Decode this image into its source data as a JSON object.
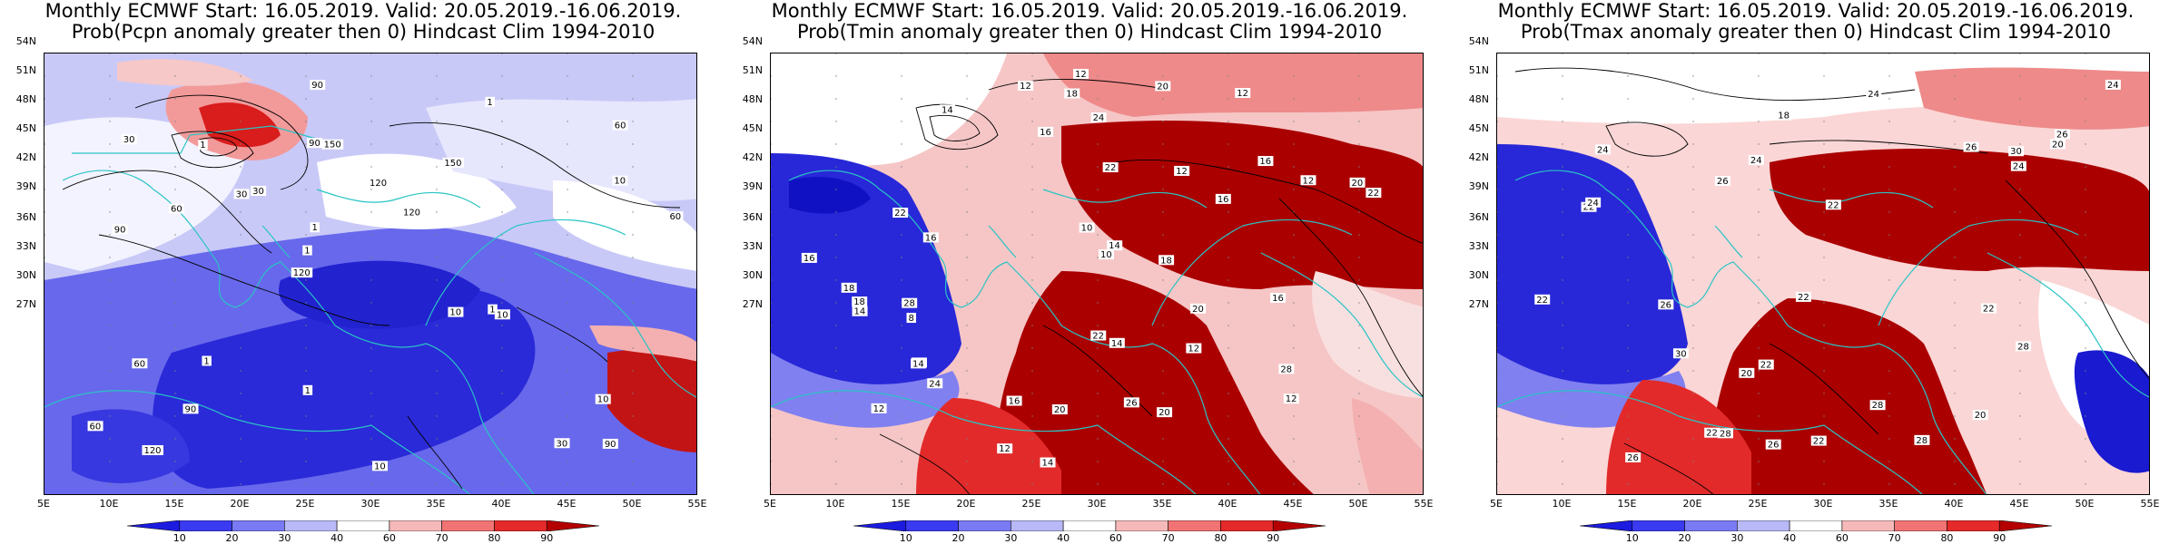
{
  "panels": [
    {
      "id": "pcpn",
      "title_line1": "Monthly ECMWF Start: 16.05.2019. Valid: 20.05.2019.-16.06.2019.",
      "title_line2": "Prob(Pcpn anomaly greater then 0) Hindcast Clim 1994-2010",
      "contour_labels": [
        "90",
        "90",
        "60",
        "120",
        "150",
        "120",
        "90",
        "120",
        "60",
        "30",
        "60",
        "90",
        "150",
        "120",
        "10",
        "30",
        "90",
        "60",
        "10",
        "10",
        "1",
        "1",
        "1",
        "1",
        "1",
        "1",
        "30",
        "10",
        "1",
        "10",
        "30",
        "60"
      ]
    },
    {
      "id": "tmin",
      "title_line1": "Monthly ECMWF Start: 16.05.2019. Valid: 20.05.2019.-16.06.2019.",
      "title_line2": "Prob(Tmin anomaly greater then 0) Hindcast Clim 1994-2010",
      "contour_labels": [
        "12",
        "12",
        "14",
        "16",
        "14",
        "16",
        "8",
        "10",
        "12",
        "16",
        "18",
        "12",
        "12",
        "10",
        "14",
        "12",
        "12",
        "16",
        "14",
        "12",
        "20",
        "18",
        "16",
        "14",
        "10",
        "16",
        "18",
        "20",
        "22",
        "20",
        "22",
        "24",
        "26",
        "22",
        "28",
        "14",
        "20",
        "18",
        "12",
        "16",
        "22",
        "24",
        "20",
        "28"
      ]
    },
    {
      "id": "tmax",
      "title_line1": "Monthly ECMWF Start: 16.05.2019. Valid: 20.05.2019.-16.06.2019.",
      "title_line2": "Prob(Tmax anomaly greater then 0) Hindcast Clim 1994-2010",
      "contour_labels": [
        "20",
        "22",
        "24",
        "26",
        "18",
        "22",
        "24",
        "26",
        "28",
        "22",
        "24",
        "26",
        "20",
        "22",
        "24",
        "28",
        "26",
        "22",
        "20",
        "22",
        "24",
        "22",
        "26",
        "28",
        "30",
        "22",
        "24",
        "26",
        "28",
        "30"
      ]
    }
  ],
  "lat_labels": [
    "54N",
    "51N",
    "48N",
    "45N",
    "42N",
    "39N",
    "36N",
    "33N",
    "30N",
    "27N"
  ],
  "lon_labels": [
    "5E",
    "10E",
    "15E",
    "20E",
    "25E",
    "30E",
    "35E",
    "40E",
    "45E",
    "50E",
    "55E"
  ],
  "colorbar": {
    "labels": [
      "10",
      "20",
      "30",
      "40",
      "60",
      "70",
      "80",
      "90"
    ],
    "colors": [
      "#1c1ce0",
      "#3a3af0",
      "#7a7af5",
      "#b9b9f8",
      "#ffffff",
      "#f6b9b9",
      "#f27373",
      "#e52a2a",
      "#b40000"
    ]
  },
  "colors": {
    "coast": "#29c4c4",
    "contour": "#000000",
    "grid_dots": "#808080"
  }
}
